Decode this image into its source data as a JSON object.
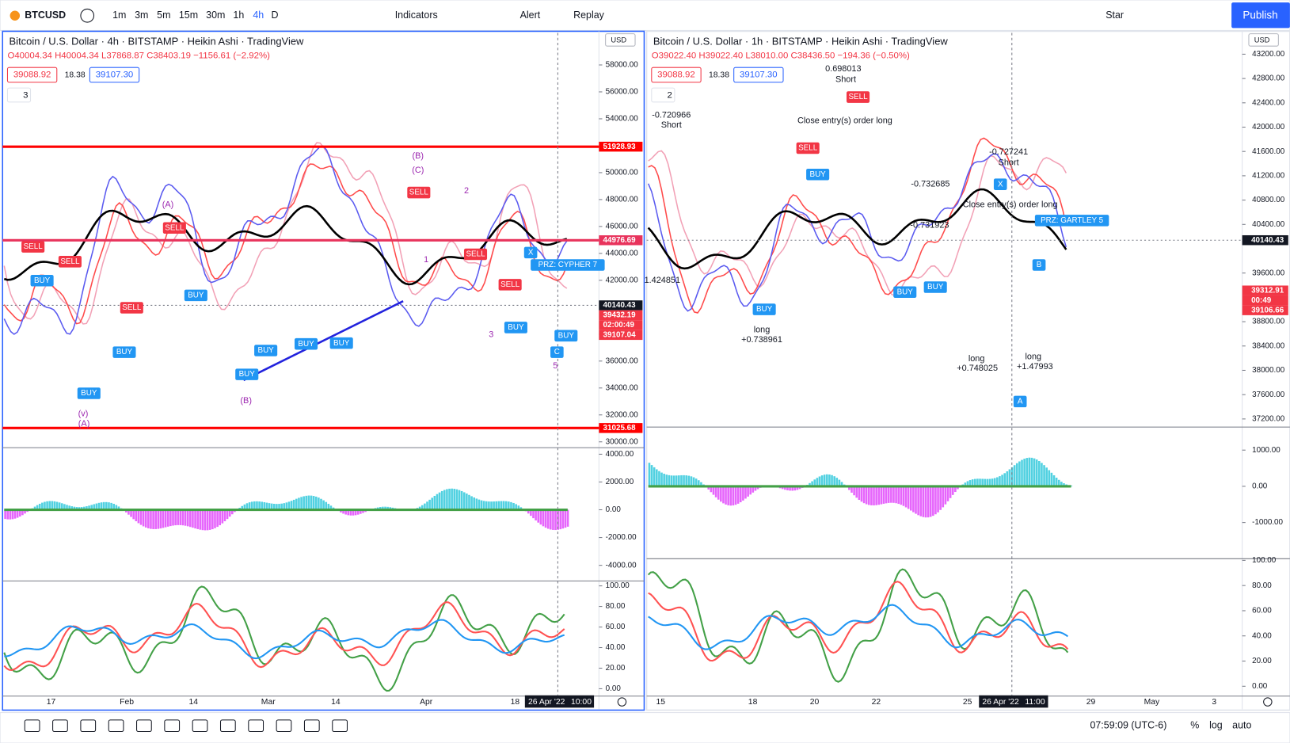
{
  "toolbar": {
    "symbol": "BTCUSD",
    "intervals": [
      "1m",
      "3m",
      "5m",
      "15m",
      "30m",
      "1h",
      "4h",
      "D"
    ],
    "indicators": "Indicators",
    "alert": "Alert",
    "replay": "Replay",
    "layout": "Star",
    "publish": "Publish"
  },
  "charts": [
    {
      "title": "Bitcoin / U.S. Dollar · 4h · BITSTAMP · Heikin Ashi · TradingView",
      "ohlc": "O40004.34 H40004.34 L37868.87 C38403.19 −1156.61 (−2.92%)",
      "bid": "39088.92",
      "spread": "18.38",
      "ask": "39107.30",
      "indicator_count": "3",
      "currency": "USD",
      "main_ylim": [
        29630,
        60380
      ],
      "main_ticks": [
        "58000.00",
        "56000.00",
        "54000.00",
        "50000.00",
        "48000.00",
        "46000.00",
        "44000.00",
        "42000.00",
        "38000.00",
        "36000.00",
        "34000.00",
        "32000.00",
        "30000.00"
      ],
      "price_tags": [
        {
          "label": "51928.93",
          "color": "#ff0000"
        },
        {
          "label": "44976.69",
          "color": "#e8335c"
        },
        {
          "label": "40140.43",
          "color": "#131722"
        },
        {
          "label": "39432.19",
          "color": "#f23645"
        },
        {
          "label": "02:00:49",
          "color": "#f23645"
        },
        {
          "label": "39107.04",
          "color": "#f23645"
        },
        {
          "label": "31025.68",
          "color": "#ff0000"
        }
      ],
      "osc1_ylim": [
        -5065,
        4414
      ],
      "osc1_ticks": [
        "4000.00",
        "2000.00",
        "0.00",
        "-2000.00",
        "-4000.00"
      ],
      "osc2_ylim": [
        -6.4,
        103.2
      ],
      "osc2_ticks": [
        "100.00",
        "80.00",
        "60.00",
        "40.00",
        "20.00",
        "0.00"
      ],
      "time_labels": [
        "17",
        "Feb",
        "14",
        "Mar",
        "14",
        "Apr",
        "18"
      ],
      "crosshair_date": "26 Apr '22",
      "crosshair_time": "10:00",
      "annotations": [
        "(A)",
        "(B)",
        "(C)",
        "(B)",
        "(v)",
        "(A)",
        "SELL",
        "SELL",
        "SELL",
        "SELL",
        "SELL",
        "SELL",
        "SELL",
        "BUY",
        "BUY",
        "BUY",
        "BUY",
        "BUY",
        "BUY",
        "BUY",
        "BUY",
        "BUY",
        "BUY",
        "PRZ: CYPHER 7",
        "X",
        "C",
        "1",
        "2",
        "3",
        "5"
      ]
    },
    {
      "title": "Bitcoin / U.S. Dollar · 1h · BITSTAMP · Heikin Ashi · TradingView",
      "ohlc": "O39022.40 H39022.40 L38010.00 C38436.50 −194.36 (−0.50%)",
      "bid": "39088.92",
      "spread": "18.38",
      "ask": "39107.30",
      "indicator_count": "2",
      "currency": "USD",
      "main_ylim": [
        37080,
        43550
      ],
      "main_ticks": [
        "43200.00",
        "42800.00",
        "42400.00",
        "42000.00",
        "41600.00",
        "41200.00",
        "40800.00",
        "40400.00",
        "39600.00",
        "38800.00",
        "38400.00",
        "38000.00",
        "37600.00",
        "37200.00"
      ],
      "price_tags": [
        {
          "label": "40140.43",
          "color": "#131722"
        },
        {
          "label": "39312.91",
          "color": "#f23645"
        },
        {
          "label": "00:49",
          "color": "#f23645"
        },
        {
          "label": "39106.66",
          "color": "#f23645"
        }
      ],
      "osc1_ylim": [
        -1977,
        1614
      ],
      "osc1_ticks": [
        "1000.00",
        "0.00",
        "-1000.00"
      ],
      "osc2_ylim": [
        -7.2,
        101.3
      ],
      "osc2_ticks": [
        "100.00",
        "80.00",
        "60.00",
        "40.00",
        "20.00",
        "0.00"
      ],
      "time_labels": [
        "15",
        "18",
        "20",
        "22",
        "25",
        "29",
        "May",
        "3"
      ],
      "crosshair_date": "26 Apr '22",
      "crosshair_time": "11:00",
      "annotations": [
        "-0.720966",
        "Short",
        "Short",
        "0.698013",
        "Close entry(s) order long",
        "-0.727241",
        "Short",
        "Close entry(s) order long",
        "-0.732685",
        "-0.731923",
        "long",
        "+0.738961",
        "long",
        "+0.748025",
        "long",
        "+1.47993",
        "PRZ: GARTLEY 5",
        "B",
        "A",
        "X",
        "SELL",
        "SELL",
        "BUY",
        "BUY",
        "BUY",
        "BUY",
        "1.424851"
      ]
    }
  ],
  "status": {
    "clock": "07:59:09 (UTC-6)",
    "percent": "%",
    "log": "log",
    "auto": "auto"
  }
}
